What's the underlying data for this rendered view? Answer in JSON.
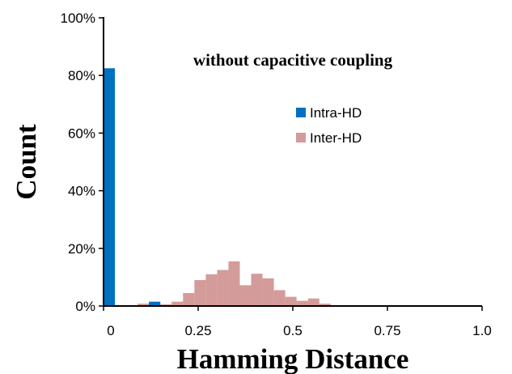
{
  "chart_data": {
    "type": "bar",
    "title": "without capacitive coupling",
    "xlabel": "Hamming Distance",
    "ylabel": "Count",
    "xlim": [
      0,
      1.0
    ],
    "ylim": [
      0,
      100
    ],
    "bin_width": 0.03,
    "x_ticks": [
      "0",
      "0.25",
      "0.5",
      "0.75",
      "1.0"
    ],
    "y_ticks": [
      "0%",
      "20%",
      "40%",
      "60%",
      "80%",
      "100%"
    ],
    "grid": false,
    "legend_position": "top-right",
    "series": [
      {
        "name": "Intra-HD",
        "color": "#0070C0",
        "x": [
          0.0,
          0.12
        ],
        "values": [
          82.5,
          1.5
        ]
      },
      {
        "name": "Inter-HD",
        "color": "#D39B99",
        "x": [
          0.09,
          0.12,
          0.15,
          0.18,
          0.21,
          0.24,
          0.27,
          0.3,
          0.33,
          0.36,
          0.39,
          0.42,
          0.45,
          0.48,
          0.51,
          0.54,
          0.57,
          0.6
        ],
        "values": [
          0.8,
          1.0,
          0.6,
          1.5,
          4.5,
          9.0,
          11.0,
          12.5,
          15.5,
          7.2,
          11.2,
          9.6,
          5.5,
          3.2,
          1.8,
          2.6,
          0.8,
          0.3
        ]
      }
    ]
  }
}
